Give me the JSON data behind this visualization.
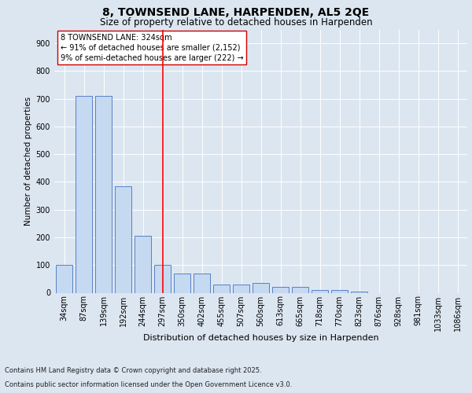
{
  "title1": "8, TOWNSEND LANE, HARPENDEN, AL5 2QE",
  "title2": "Size of property relative to detached houses in Harpenden",
  "xlabel": "Distribution of detached houses by size in Harpenden",
  "ylabel": "Number of detached properties",
  "categories": [
    "34sqm",
    "87sqm",
    "139sqm",
    "192sqm",
    "244sqm",
    "297sqm",
    "350sqm",
    "402sqm",
    "455sqm",
    "507sqm",
    "560sqm",
    "613sqm",
    "665sqm",
    "718sqm",
    "770sqm",
    "823sqm",
    "876sqm",
    "928sqm",
    "981sqm",
    "1033sqm",
    "1086sqm"
  ],
  "values": [
    100,
    710,
    710,
    385,
    207,
    100,
    70,
    70,
    30,
    30,
    35,
    20,
    20,
    10,
    10,
    5,
    0,
    0,
    0,
    0,
    0
  ],
  "bar_color": "#c5d9f1",
  "bar_edge_color": "#4472c4",
  "background_color": "#dce6f1",
  "plot_bg_color": "#dce6f1",
  "grid_color": "#ffffff",
  "vline_x_index": 5,
  "vline_color": "#ff0000",
  "annotation_text": "8 TOWNSEND LANE: 324sqm\n← 91% of detached houses are smaller (2,152)\n9% of semi-detached houses are larger (222) →",
  "annotation_box_color": "#ffffff",
  "annotation_box_edge": "#cc0000",
  "footer1": "Contains HM Land Registry data © Crown copyright and database right 2025.",
  "footer2": "Contains public sector information licensed under the Open Government Licence v3.0.",
  "ylim": [
    0,
    950
  ],
  "title1_fontsize": 10,
  "title2_fontsize": 8.5,
  "xlabel_fontsize": 8,
  "ylabel_fontsize": 7.5,
  "tick_fontsize": 7,
  "annotation_fontsize": 7,
  "footer_fontsize": 6
}
